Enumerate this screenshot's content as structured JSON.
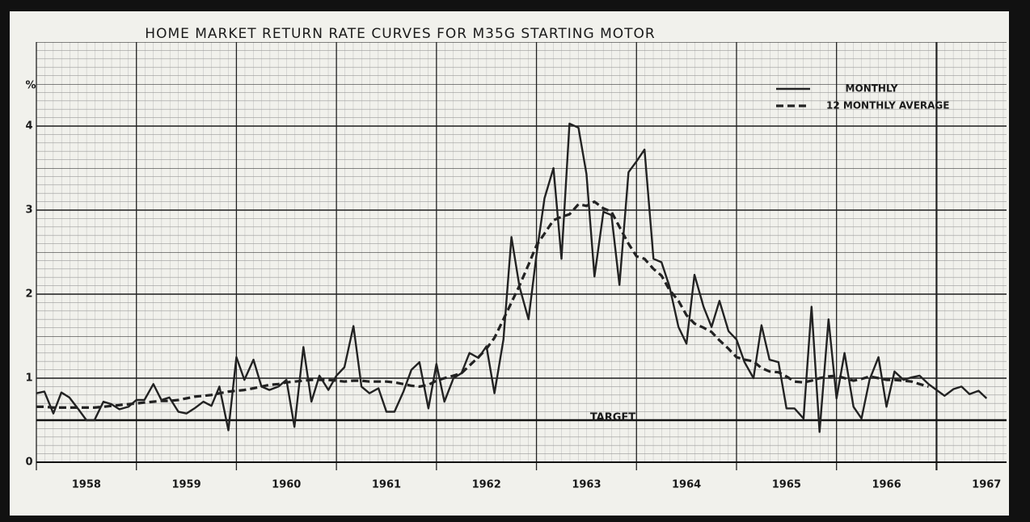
{
  "chart_data": {
    "type": "line",
    "title": "HOME MARKET RETURN RATE CURVES FOR M35G STARTING MOTOR",
    "y_unit": "%",
    "xlim": [
      1958,
      1967.7
    ],
    "ylim": [
      0,
      5
    ],
    "yticks": [
      0,
      1,
      2,
      3,
      4
    ],
    "xticks": [
      {
        "value": 1958.5,
        "label": "1958"
      },
      {
        "value": 1959.5,
        "label": "1959"
      },
      {
        "value": 1960.5,
        "label": "1960"
      },
      {
        "value": 1961.5,
        "label": "1961"
      },
      {
        "value": 1962.5,
        "label": "1962"
      },
      {
        "value": 1963.5,
        "label": "1963"
      },
      {
        "value": 1964.5,
        "label": "1964"
      },
      {
        "value": 1965.5,
        "label": "1965"
      },
      {
        "value": 1966.5,
        "label": "1966"
      },
      {
        "value": 1967.5,
        "label": "1967"
      }
    ],
    "grid": true,
    "legend": "top-right",
    "target": {
      "label": "TARGET",
      "value": 0.5
    },
    "x": [
      1958.0,
      1958.08,
      1958.17,
      1958.25,
      1958.33,
      1958.42,
      1958.5,
      1958.58,
      1958.67,
      1958.75,
      1958.83,
      1958.92,
      1959.0,
      1959.08,
      1959.17,
      1959.25,
      1959.33,
      1959.42,
      1959.5,
      1959.58,
      1959.67,
      1959.75,
      1959.83,
      1959.92,
      1960.0,
      1960.08,
      1960.17,
      1960.25,
      1960.33,
      1960.42,
      1960.5,
      1960.58,
      1960.67,
      1960.75,
      1960.83,
      1960.92,
      1961.0,
      1961.08,
      1961.17,
      1961.25,
      1961.33,
      1961.42,
      1961.5,
      1961.58,
      1961.67,
      1961.75,
      1961.83,
      1961.92,
      1962.0,
      1962.08,
      1962.17,
      1962.25,
      1962.33,
      1962.42,
      1962.5,
      1962.58,
      1962.67,
      1962.75,
      1962.83,
      1962.92,
      1963.0,
      1963.08,
      1963.17,
      1963.25,
      1963.33,
      1963.42,
      1963.5,
      1963.58,
      1963.67,
      1963.75,
      1963.83,
      1963.92,
      1964.0,
      1964.08,
      1964.17,
      1964.25,
      1964.33,
      1964.42,
      1964.5,
      1964.58,
      1964.67,
      1964.75,
      1964.83,
      1964.92,
      1965.0,
      1965.08,
      1965.17,
      1965.25,
      1965.33,
      1965.42,
      1965.5,
      1965.58,
      1965.67,
      1965.75,
      1965.83,
      1965.92,
      1966.0,
      1966.08,
      1966.17,
      1966.25,
      1966.33,
      1966.42,
      1966.5,
      1966.58,
      1966.67,
      1966.75,
      1966.83,
      1966.92,
      1967.0,
      1967.08,
      1967.17,
      1967.25,
      1967.33,
      1967.42,
      1967.5
    ],
    "series": [
      {
        "name": "MONTHLY",
        "color": "#222222",
        "dash": "solid",
        "values": [
          0.82,
          0.84,
          0.58,
          0.83,
          0.77,
          0.63,
          0.5,
          0.5,
          0.72,
          0.69,
          0.63,
          0.66,
          0.74,
          0.74,
          0.93,
          0.74,
          0.77,
          0.6,
          0.58,
          0.64,
          0.72,
          0.67,
          0.9,
          0.38,
          1.25,
          0.98,
          1.22,
          0.9,
          0.86,
          0.9,
          0.98,
          0.42,
          1.37,
          0.72,
          1.03,
          0.86,
          1.03,
          1.13,
          1.62,
          0.9,
          0.82,
          0.88,
          0.6,
          0.6,
          0.84,
          1.1,
          1.19,
          0.64,
          1.17,
          0.72,
          1.0,
          1.06,
          1.3,
          1.24,
          1.38,
          0.82,
          1.46,
          2.68,
          2.09,
          1.7,
          2.47,
          3.14,
          3.5,
          2.42,
          4.03,
          3.98,
          3.43,
          2.21,
          2.98,
          2.94,
          2.11,
          3.45,
          3.58,
          3.72,
          2.42,
          2.38,
          2.09,
          1.61,
          1.41,
          2.23,
          1.85,
          1.61,
          1.92,
          1.56,
          1.46,
          1.19,
          1.0,
          1.63,
          1.22,
          1.19,
          0.64,
          0.64,
          0.52,
          1.85,
          0.36,
          1.7,
          0.76,
          1.3,
          0.66,
          0.52,
          0.98,
          1.25,
          0.66,
          1.08,
          0.98,
          1.01,
          1.03,
          0.93,
          0.86,
          0.79,
          0.87,
          0.9,
          0.81,
          0.85,
          0.76
        ]
      },
      {
        "name": "12 MONTHLY AVERAGE",
        "color": "#222222",
        "dash": "dashed",
        "values": [
          0.66,
          0.66,
          0.65,
          0.65,
          0.65,
          0.65,
          0.65,
          0.65,
          0.66,
          0.67,
          0.68,
          0.69,
          0.7,
          0.71,
          0.72,
          0.73,
          0.73,
          0.74,
          0.76,
          0.78,
          0.79,
          0.8,
          0.82,
          0.84,
          0.85,
          0.86,
          0.88,
          0.9,
          0.92,
          0.93,
          0.95,
          0.96,
          0.97,
          0.98,
          0.98,
          0.98,
          0.97,
          0.96,
          0.97,
          0.97,
          0.96,
          0.96,
          0.96,
          0.95,
          0.93,
          0.91,
          0.9,
          0.92,
          0.97,
          1.0,
          1.03,
          1.06,
          1.15,
          1.25,
          1.35,
          1.48,
          1.7,
          1.9,
          2.1,
          2.35,
          2.58,
          2.72,
          2.88,
          2.92,
          2.95,
          3.07,
          3.05,
          3.1,
          3.02,
          2.98,
          2.8,
          2.6,
          2.45,
          2.42,
          2.3,
          2.22,
          2.05,
          1.92,
          1.75,
          1.65,
          1.6,
          1.55,
          1.45,
          1.35,
          1.25,
          1.22,
          1.2,
          1.12,
          1.08,
          1.07,
          1.02,
          0.96,
          0.95,
          0.97,
          1.0,
          1.02,
          1.03,
          1.0,
          0.97,
          0.99,
          1.02,
          1.0,
          0.98,
          0.98,
          0.97,
          0.96,
          0.93,
          0.9,
          null,
          null,
          null,
          null,
          null,
          null,
          null
        ]
      }
    ]
  }
}
